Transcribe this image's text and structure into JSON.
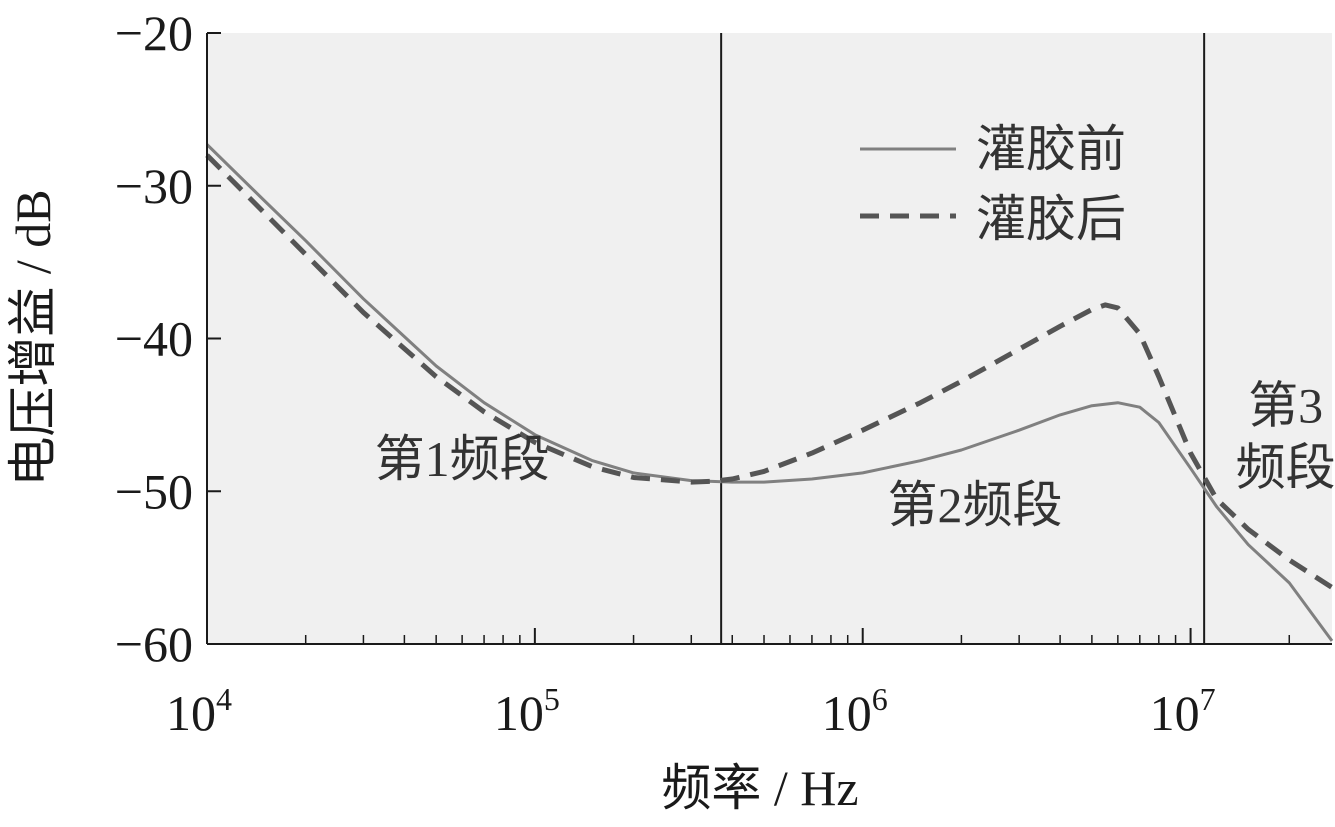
{
  "chart_data": {
    "type": "line",
    "xlabel": "频率 / Hz",
    "ylabel": "电压增益 / dB",
    "x_scale": "log",
    "xlim": [
      10000,
      27000000
    ],
    "ylim": [
      -60,
      -20
    ],
    "x_ticks": [
      {
        "value": 10000,
        "base": "10",
        "exp": "4"
      },
      {
        "value": 100000,
        "base": "10",
        "exp": "5"
      },
      {
        "value": 1000000,
        "base": "10",
        "exp": "6"
      },
      {
        "value": 10000000,
        "base": "10",
        "exp": "7"
      }
    ],
    "y_ticks": [
      {
        "value": -20,
        "label": "−20"
      },
      {
        "value": -30,
        "label": "−30"
      },
      {
        "value": -40,
        "label": "−40"
      },
      {
        "value": -50,
        "label": "−50"
      },
      {
        "value": -60,
        "label": "−60"
      }
    ],
    "grid": false,
    "legend_position": "top-right",
    "band_boundaries": [
      370000,
      11000000
    ],
    "regions": [
      {
        "label": "第1频段",
        "x": 60000,
        "y": -49
      },
      {
        "label": "第2频段",
        "x": 2200000,
        "y": -52
      },
      {
        "label": [
          "第3",
          "频段"
        ],
        "x": 19500000,
        "y": -45.5
      }
    ],
    "series": [
      {
        "name": "灌胶前",
        "style": "solid",
        "color": "#808080",
        "x": [
          10000,
          15000,
          20000,
          30000,
          50000,
          70000,
          100000,
          150000,
          200000,
          300000,
          400000,
          500000,
          700000,
          1000000,
          1500000,
          2000000,
          3000000,
          4000000,
          5000000,
          6000000,
          7000000,
          8000000,
          10000000,
          12000000,
          15000000,
          20000000,
          27000000
        ],
        "y": [
          -27.3,
          -31.0,
          -33.6,
          -37.4,
          -41.8,
          -44.2,
          -46.3,
          -48.0,
          -48.8,
          -49.3,
          -49.4,
          -49.4,
          -49.2,
          -48.8,
          -48.0,
          -47.3,
          -46.0,
          -45.0,
          -44.4,
          -44.2,
          -44.5,
          -45.5,
          -48.5,
          -51.0,
          -53.5,
          -56.0,
          -59.8
        ]
      },
      {
        "name": "灌胶后",
        "style": "dashed",
        "color": "#555555",
        "x": [
          10000,
          15000,
          20000,
          30000,
          50000,
          70000,
          100000,
          150000,
          200000,
          300000,
          350000,
          400000,
          500000,
          700000,
          1000000,
          1500000,
          2000000,
          3000000,
          4000000,
          5000000,
          5500000,
          6000000,
          7000000,
          8000000,
          10000000,
          12000000,
          15000000,
          20000000,
          27000000
        ],
        "y": [
          -28.0,
          -31.8,
          -34.5,
          -38.3,
          -42.5,
          -44.8,
          -46.8,
          -48.4,
          -49.1,
          -49.4,
          -49.35,
          -49.2,
          -48.7,
          -47.5,
          -46.0,
          -44.2,
          -42.8,
          -40.7,
          -39.2,
          -38.1,
          -37.8,
          -38.0,
          -39.7,
          -42.5,
          -47.5,
          -50.5,
          -52.5,
          -54.5,
          -56.3
        ]
      }
    ]
  }
}
